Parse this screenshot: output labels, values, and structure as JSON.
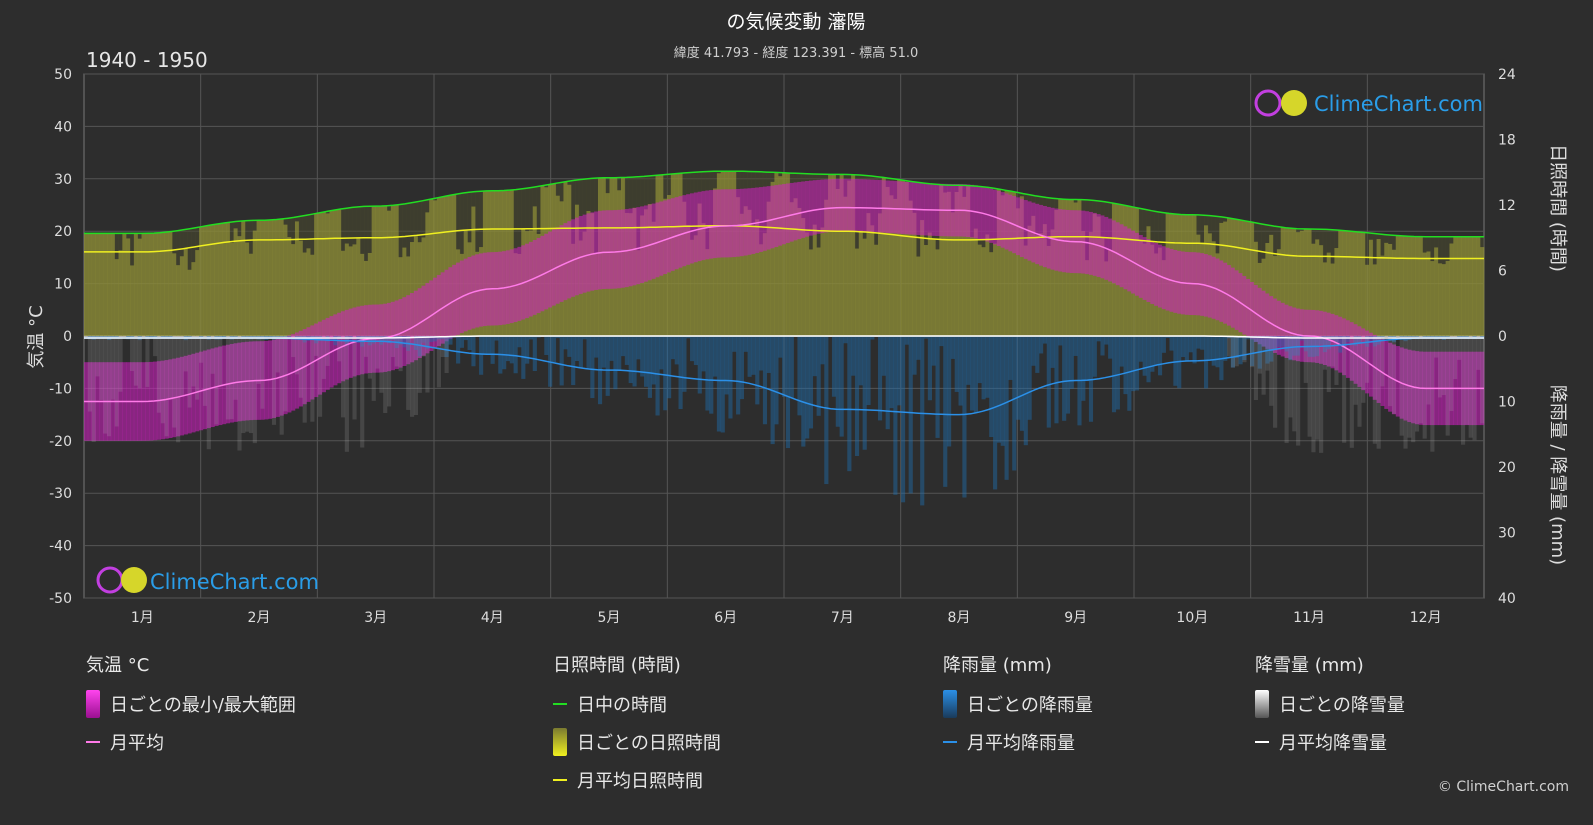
{
  "header": {
    "title": "の気候変動 瀋陽",
    "subtitle": "緯度 41.793 - 経度 123.391 - 標高 51.0",
    "period": "1940 - 1950"
  },
  "watermark": {
    "text": "ClimeChart.com"
  },
  "copyright": "© ClimeChart.com",
  "legend": {
    "temperature": {
      "header": "気温 °C",
      "range_label": "日ごとの最小/最大範囲",
      "mean_label": "月平均"
    },
    "sunshine": {
      "header": "日照時間 (時間)",
      "daylight_label": "日中の時間",
      "daily_label": "日ごとの日照時間",
      "mean_label": "月平均日照時間"
    },
    "rain": {
      "header": "降雨量 (mm)",
      "daily_label": "日ごとの降雨量",
      "mean_label": "月平均降雨量"
    },
    "snow": {
      "header": "降雪量 (mm)",
      "daily_label": "日ごとの降雪量",
      "mean_label": "月平均降雪量"
    }
  },
  "colors": {
    "background": "#2d2d2d",
    "grid": "#555555",
    "temp_range": "#d41fc4",
    "temp_mean": "#ff7ae8",
    "daylight": "#22dd22",
    "sunshine": "#a9a93a",
    "sunshine_mean": "#f0f020",
    "rain": "#1f6fb0",
    "rain_mean": "#2b90e8",
    "snow": "#bbbbbb",
    "snow_mean": "#ffffff"
  },
  "chart_data": {
    "type": "line",
    "months": [
      "1月",
      "2月",
      "3月",
      "4月",
      "5月",
      "6月",
      "7月",
      "8月",
      "9月",
      "10月",
      "11月",
      "12月"
    ],
    "y_left": {
      "label": "気温 °C",
      "range": [
        -50,
        50
      ],
      "ticks": [
        50,
        40,
        30,
        20,
        10,
        0,
        -10,
        -20,
        -30,
        -40,
        -50
      ]
    },
    "y_right_top": {
      "label": "日照時間 (時間)",
      "range": [
        0,
        24
      ],
      "ticks": [
        24,
        18,
        12,
        6,
        0
      ]
    },
    "y_right_bottom": {
      "label": "降雨量 / 降雪量 (mm)",
      "range": [
        0,
        40
      ],
      "ticks": [
        10,
        20,
        30,
        40
      ]
    },
    "temp_mean": [
      -12.5,
      -8.5,
      -0.5,
      9.0,
      16.0,
      21.0,
      24.5,
      24.0,
      18.0,
      10.0,
      0.0,
      -10.0
    ],
    "temp_max": [
      -5,
      -1,
      6,
      16,
      24,
      28,
      30,
      29,
      24,
      16,
      5,
      -3
    ],
    "temp_min": [
      -20,
      -16,
      -7,
      2,
      9,
      15,
      20,
      19,
      12,
      4,
      -5,
      -17
    ],
    "daylight_hours": [
      9.4,
      10.6,
      11.9,
      13.3,
      14.5,
      15.1,
      14.8,
      13.8,
      12.5,
      11.1,
      9.8,
      9.1
    ],
    "sunshine_hours": [
      7.7,
      8.8,
      9.0,
      9.8,
      9.9,
      10.1,
      9.6,
      8.8,
      9.1,
      8.5,
      7.3,
      7.1
    ],
    "rain_mean_mm": [
      0.3,
      0.3,
      0.8,
      2.8,
      5.2,
      6.8,
      11.2,
      12.0,
      6.8,
      3.8,
      1.6,
      0.3
    ],
    "snow_mean_mm": [
      0.3,
      0.3,
      0.3,
      0.0,
      0.0,
      0.0,
      0.0,
      0.0,
      0.0,
      0.0,
      0.3,
      0.3
    ]
  }
}
